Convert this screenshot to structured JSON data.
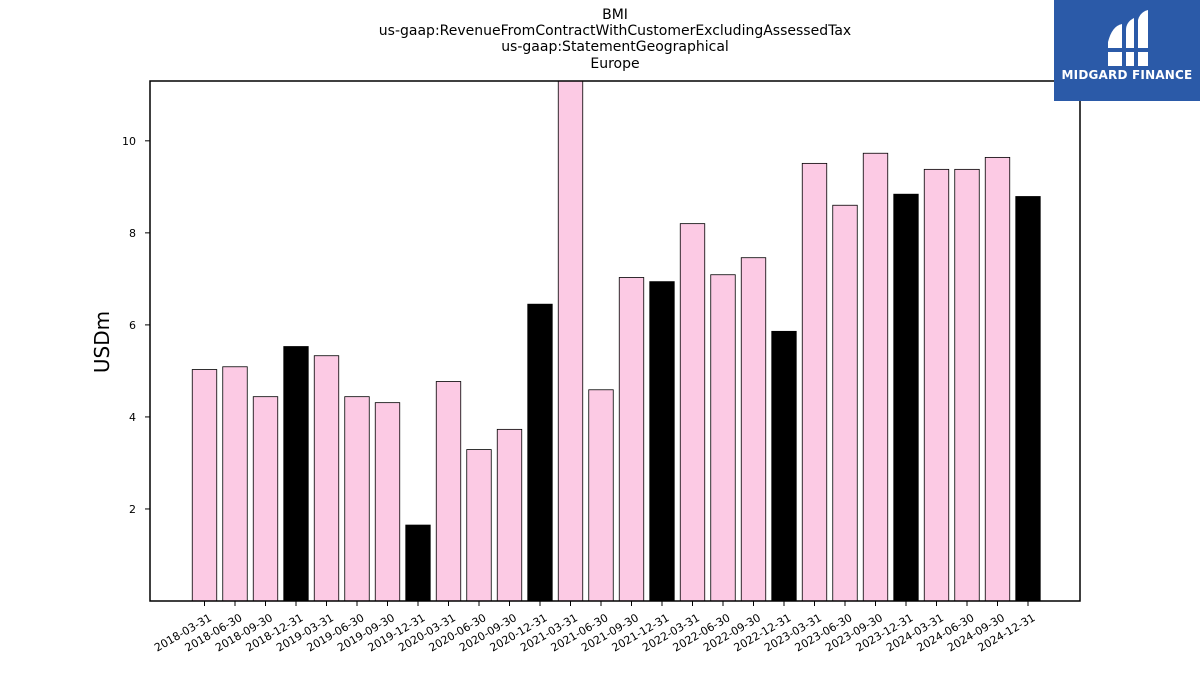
{
  "header": {
    "line1": "BMI",
    "line2": "us-gaap:RevenueFromContractWithCustomerExcludingAssessedTax",
    "line3": "us-gaap:StatementGeographical",
    "line4": "Europe"
  },
  "logo": {
    "text": "MIDGARD FINANCE",
    "bg_color": "#2b5aa8"
  },
  "colors": {
    "pink": "#fccae4",
    "black": "#000000"
  },
  "chart_data": {
    "type": "bar",
    "ylabel": "USDm",
    "ylim": [
      0,
      11.3
    ],
    "yticks": [
      2,
      4,
      6,
      8,
      10
    ],
    "grid": false,
    "categories": [
      "2018-03-31",
      "2018-06-30",
      "2018-09-30",
      "2018-12-31",
      "2019-03-31",
      "2019-06-30",
      "2019-09-30",
      "2019-12-31",
      "2020-03-31",
      "2020-06-30",
      "2020-09-30",
      "2020-12-31",
      "2021-03-31",
      "2021-06-30",
      "2021-09-30",
      "2021-12-31",
      "2022-03-31",
      "2022-06-30",
      "2022-09-30",
      "2022-12-31",
      "2023-03-31",
      "2023-06-30",
      "2023-09-30",
      "2023-12-31",
      "2024-03-31",
      "2024-06-30",
      "2024-09-30",
      "2024-12-31"
    ],
    "values": [
      5.03,
      5.09,
      4.44,
      5.53,
      5.33,
      4.44,
      4.31,
      1.65,
      4.77,
      3.29,
      3.73,
      6.45,
      11.33,
      4.59,
      7.03,
      6.94,
      8.2,
      7.09,
      7.46,
      5.86,
      9.51,
      8.6,
      9.73,
      8.84,
      9.38,
      9.38,
      9.64,
      8.79
    ],
    "fills": [
      "pink",
      "pink",
      "pink",
      "black",
      "pink",
      "pink",
      "pink",
      "black",
      "pink",
      "pink",
      "pink",
      "black",
      "pink",
      "pink",
      "pink",
      "black",
      "pink",
      "pink",
      "pink",
      "black",
      "pink",
      "pink",
      "pink",
      "black",
      "pink",
      "pink",
      "pink",
      "black"
    ]
  }
}
